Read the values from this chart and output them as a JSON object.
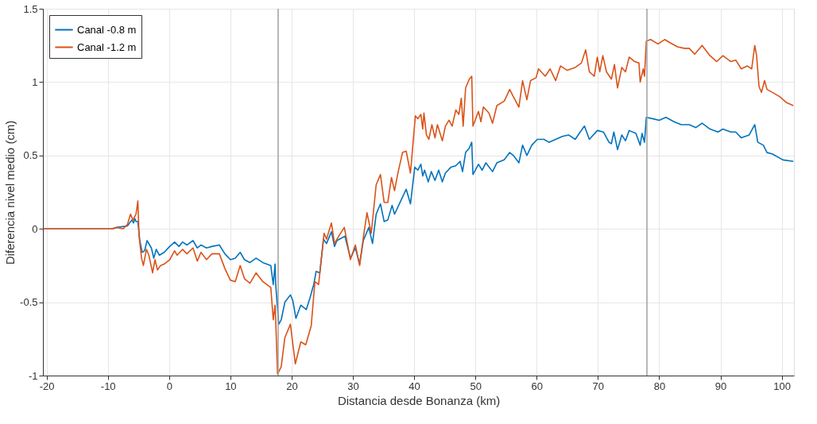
{
  "chart_data": {
    "type": "line",
    "xlabel": "Distancia desde Bonanza (km)",
    "ylabel": "Diferencia nivel medio (cm)",
    "xlim": [
      -20.6,
      102
    ],
    "xticks": [
      -20,
      -10,
      0,
      10,
      20,
      30,
      40,
      50,
      60,
      70,
      80,
      90,
      100
    ],
    "ylim": [
      -1,
      1.5
    ],
    "yticks": [
      -1,
      -0.5,
      0,
      0.5,
      1,
      1.5
    ],
    "grid": true,
    "legend": "top left",
    "line_style": "solid",
    "marker": "none",
    "ref_lines": [
      {
        "axis": "x",
        "value": 17.8,
        "color": "#a0a0a0"
      },
      {
        "axis": "x",
        "value": 78,
        "color": "#a0a0a0"
      }
    ],
    "series": [
      {
        "name": "Canal -0.8 m",
        "color": "#0072bd",
        "x": [
          -20.5,
          -9.4,
          -8.5,
          -6.8,
          -6.1,
          -5.8,
          -5.6,
          -5.4,
          -5.1,
          -4.8,
          -4.4,
          -4.0,
          -3.6,
          -2.9,
          -2.5,
          -2.1,
          -1.6,
          -0.8,
          0.1,
          0.9,
          1.6,
          2.2,
          2.9,
          3.9,
          4.6,
          5.2,
          6.1,
          7.0,
          8.2,
          9.1,
          10.0,
          10.8,
          11.6,
          12.3,
          13.2,
          14.2,
          15.3,
          16.6,
          17.0,
          17.3,
          17.4,
          17.9,
          18.3,
          18.9,
          19.8,
          20.2,
          20.7,
          21.5,
          22.4,
          23.0,
          23.6,
          24.0,
          24.6,
          25.2,
          25.7,
          26.5,
          27.0,
          27.4,
          28.7,
          29.6,
          30.4,
          31.1,
          31.7,
          32.6,
          33.2,
          33.8,
          34.5,
          35.1,
          35.7,
          36.4,
          36.8,
          37.7,
          38.7,
          39.4,
          40.1,
          40.6,
          41.1,
          41.4,
          41.7,
          42.3,
          42.8,
          43.4,
          44.0,
          44.6,
          45.1,
          46.0,
          46.8,
          47.5,
          47.9,
          48.4,
          49.0,
          49.4,
          49.6,
          50.5,
          51.1,
          51.7,
          52.8,
          53.5,
          54.7,
          55.6,
          56.2,
          57.1,
          57.7,
          58.4,
          59.2,
          60.1,
          61.2,
          62.0,
          63.1,
          64.2,
          65.2,
          66.3,
          67.1,
          67.8,
          68.6,
          69.9,
          70.9,
          71.8,
          72.2,
          72.6,
          73.2,
          73.9,
          74.5,
          75.1,
          76.2,
          76.9,
          77.2,
          77.6,
          77.9,
          79.0,
          80.0,
          81.1,
          82.4,
          83.6,
          84.9,
          86.0,
          87.0,
          88.3,
          89.6,
          90.4,
          91.7,
          92.5,
          93.4,
          94.7,
          95.6,
          96.1,
          97.0,
          97.6,
          98.5,
          100.2,
          101.9
        ],
        "values": [
          0,
          0,
          0.01,
          0.02,
          0.06,
          0.04,
          0.07,
          0.05,
          0.05,
          -0.075,
          -0.16,
          -0.15,
          -0.08,
          -0.13,
          -0.2,
          -0.14,
          -0.18,
          -0.16,
          -0.12,
          -0.09,
          -0.12,
          -0.09,
          -0.11,
          -0.08,
          -0.13,
          -0.11,
          -0.13,
          -0.12,
          -0.11,
          -0.17,
          -0.21,
          -0.2,
          -0.16,
          -0.21,
          -0.23,
          -0.2,
          -0.23,
          -0.25,
          -0.38,
          -0.24,
          -0.38,
          -0.65,
          -0.62,
          -0.5,
          -0.45,
          -0.49,
          -0.61,
          -0.52,
          -0.55,
          -0.47,
          -0.38,
          -0.29,
          -0.3,
          -0.07,
          -0.1,
          -0.02,
          -0.12,
          -0.08,
          -0.05,
          -0.2,
          -0.13,
          -0.24,
          -0.08,
          0.01,
          -0.1,
          0.1,
          0.17,
          0.05,
          0.06,
          0.16,
          0.1,
          0.18,
          0.27,
          0.17,
          0.42,
          0.4,
          0.44,
          0.36,
          0.4,
          0.32,
          0.39,
          0.33,
          0.4,
          0.32,
          0.38,
          0.42,
          0.43,
          0.46,
          0.39,
          0.52,
          0.55,
          0.59,
          0.37,
          0.44,
          0.4,
          0.45,
          0.39,
          0.45,
          0.47,
          0.52,
          0.5,
          0.45,
          0.57,
          0.5,
          0.57,
          0.61,
          0.61,
          0.59,
          0.61,
          0.63,
          0.64,
          0.61,
          0.66,
          0.7,
          0.61,
          0.67,
          0.66,
          0.59,
          0.58,
          0.66,
          0.54,
          0.64,
          0.6,
          0.67,
          0.65,
          0.57,
          0.65,
          0.59,
          0.76,
          0.75,
          0.74,
          0.76,
          0.73,
          0.71,
          0.71,
          0.69,
          0.72,
          0.68,
          0.66,
          0.68,
          0.66,
          0.66,
          0.62,
          0.64,
          0.71,
          0.59,
          0.57,
          0.52,
          0.51,
          0.47,
          0.46
        ]
      },
      {
        "name": "Canal -1.2 m",
        "color": "#d95319",
        "x": [
          -20.5,
          -9.4,
          -8.5,
          -7.5,
          -6.8,
          -6.3,
          -5.9,
          -5.4,
          -5.1,
          -4.9,
          -4.5,
          -4.2,
          -3.7,
          -3.3,
          -2.7,
          -2.3,
          -1.9,
          -1.4,
          -0.8,
          0.1,
          0.9,
          1.3,
          2.2,
          2.9,
          3.9,
          4.6,
          5.2,
          6.1,
          7.0,
          8.2,
          9.1,
          10.0,
          10.8,
          11.6,
          12.3,
          13.2,
          14.2,
          15.3,
          16.6,
          17.0,
          17.3,
          17.4,
          17.7,
          18.3,
          18.9,
          19.8,
          20.6,
          21.5,
          22.3,
          23.2,
          23.8,
          24.4,
          25.3,
          25.7,
          26.5,
          27.0,
          27.7,
          28.6,
          29.6,
          30.4,
          31.1,
          31.7,
          32.3,
          33.0,
          33.8,
          34.5,
          35.1,
          35.7,
          36.3,
          36.8,
          37.4,
          38.1,
          38.7,
          39.4,
          40.2,
          40.6,
          41.1,
          41.4,
          41.6,
          42.0,
          42.4,
          42.9,
          43.4,
          43.8,
          44.6,
          45.1,
          45.7,
          46.2,
          46.8,
          47.3,
          47.7,
          48.0,
          48.4,
          49.0,
          49.4,
          49.6,
          50.5,
          50.9,
          51.3,
          52.2,
          52.8,
          53.5,
          54.7,
          55.6,
          56.2,
          57.1,
          57.7,
          58.4,
          59.0,
          59.9,
          60.3,
          61.4,
          62.2,
          63.1,
          63.9,
          65.0,
          66.3,
          67.3,
          68.0,
          68.6,
          69.4,
          69.9,
          70.3,
          70.8,
          71.4,
          72.2,
          72.7,
          73.2,
          73.9,
          74.5,
          75.1,
          76.0,
          76.7,
          76.9,
          77.4,
          77.6,
          77.9,
          78.6,
          79.8,
          80.9,
          81.7,
          83.0,
          84.1,
          84.9,
          85.8,
          87.0,
          88.3,
          89.4,
          90.4,
          91.7,
          92.5,
          93.4,
          94.4,
          95.1,
          95.6,
          95.9,
          96.3,
          96.7,
          97.2,
          97.6,
          98.5,
          99.7,
          100.8,
          101.9
        ],
        "values": [
          0,
          0,
          0.01,
          0,
          0.03,
          0.1,
          0.06,
          0.1,
          0.19,
          -0.05,
          -0.2,
          -0.25,
          -0.14,
          -0.18,
          -0.3,
          -0.21,
          -0.28,
          -0.25,
          -0.24,
          -0.21,
          -0.15,
          -0.18,
          -0.14,
          -0.17,
          -0.13,
          -0.22,
          -0.16,
          -0.21,
          -0.17,
          -0.17,
          -0.27,
          -0.35,
          -0.36,
          -0.25,
          -0.34,
          -0.37,
          -0.3,
          -0.36,
          -0.4,
          -0.62,
          -0.52,
          -0.62,
          -0.99,
          -0.94,
          -0.74,
          -0.65,
          -0.92,
          -0.77,
          -0.79,
          -0.66,
          -0.36,
          -0.38,
          -0.03,
          -0.07,
          0.04,
          -0.1,
          -0.05,
          0.01,
          -0.21,
          -0.11,
          -0.25,
          -0.06,
          0.11,
          -0.03,
          0.3,
          0.37,
          0.18,
          0.18,
          0.35,
          0.26,
          0.39,
          0.52,
          0.53,
          0.38,
          0.77,
          0.75,
          0.78,
          0.68,
          0.79,
          0.64,
          0.61,
          0.71,
          0.62,
          0.71,
          0.6,
          0.7,
          0.74,
          0.7,
          0.81,
          0.78,
          0.89,
          0.7,
          0.96,
          1.02,
          1.04,
          0.7,
          0.8,
          0.73,
          0.83,
          0.79,
          0.72,
          0.84,
          0.87,
          0.95,
          0.9,
          0.83,
          1.01,
          0.88,
          1.01,
          1.03,
          1.09,
          1.04,
          1.09,
          1.01,
          1.11,
          1.08,
          1.1,
          1.13,
          1.22,
          1.07,
          1.04,
          1.17,
          1.07,
          1.18,
          1.07,
          1.02,
          1.12,
          0.96,
          1.1,
          1.07,
          1.17,
          1.14,
          1.13,
          1.0,
          1.09,
          1.04,
          1.28,
          1.29,
          1.26,
          1.29,
          1.27,
          1.24,
          1.23,
          1.23,
          1.19,
          1.25,
          1.18,
          1.14,
          1.18,
          1.14,
          1.15,
          1.09,
          1.11,
          1.09,
          1.25,
          1.18,
          0.97,
          0.93,
          1.01,
          0.95,
          0.93,
          0.9,
          0.86,
          0.84
        ]
      }
    ]
  }
}
